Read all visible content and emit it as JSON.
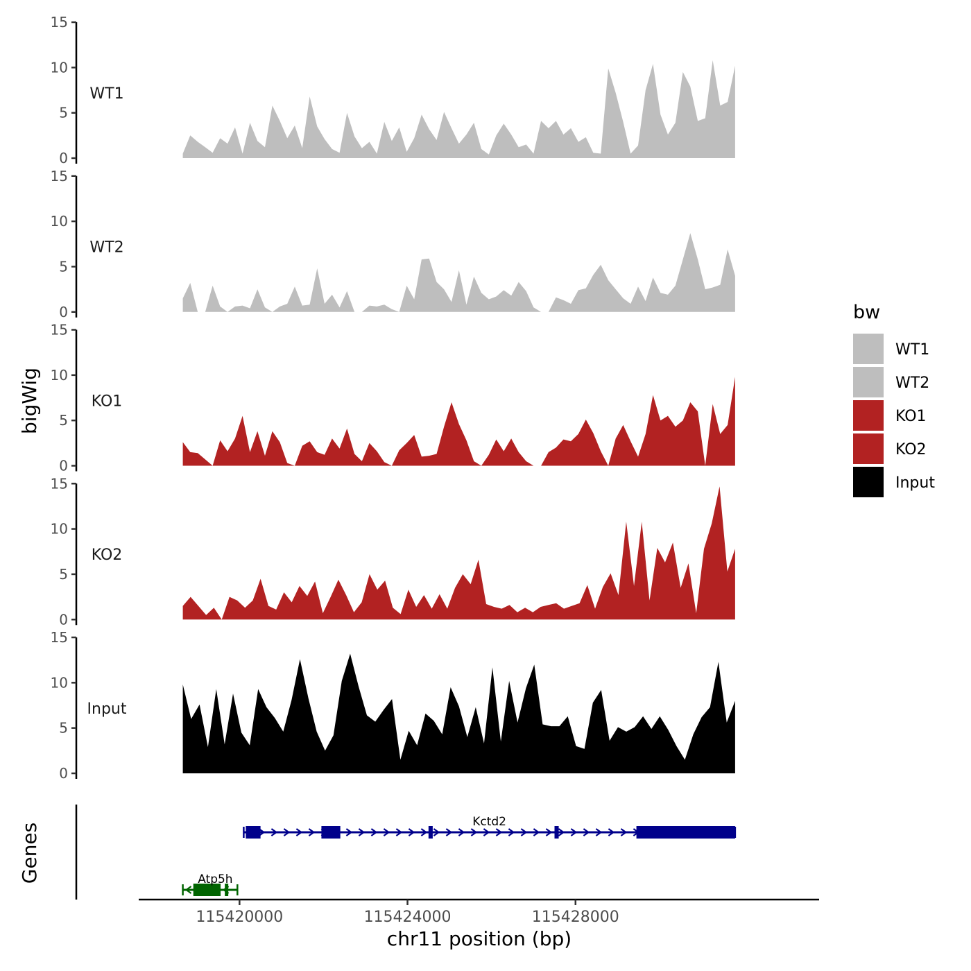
{
  "chart_data": {
    "type": "area",
    "chromosome": "chr11",
    "xlabel": "chr11 position (bp)",
    "ylabel": "bigWig",
    "gene_panel_label": "Genes",
    "xlim": [
      115417600,
      115433800
    ],
    "x_ticks": [
      115420000,
      115424000,
      115428000
    ],
    "x_tick_labels": [
      "115420000",
      "115424000",
      "115428000"
    ],
    "ylim": [
      0,
      15
    ],
    "y_ticks": [
      0,
      5,
      10,
      15
    ],
    "y_tick_labels": [
      "0",
      "5",
      "10",
      "15"
    ],
    "data_range": [
      115418650,
      115431800
    ],
    "series": [
      {
        "name": "WT1",
        "color": "#BEBEBE",
        "values": [
          0.5,
          2.5,
          1.8,
          1.2,
          0.6,
          2.2,
          1.6,
          3.4,
          0.5,
          3.9,
          1.9,
          1.2,
          5.8,
          4.1,
          2.2,
          3.6,
          1.1,
          6.8,
          3.5,
          2.1,
          1.0,
          0.6,
          5.0,
          2.4,
          1.1,
          1.8,
          0.5,
          4.0,
          1.9,
          3.4,
          0.7,
          2.2,
          4.8,
          3.2,
          2.0,
          5.1,
          3.3,
          1.6,
          2.6,
          3.9,
          1.0,
          0.4,
          2.5,
          3.8,
          2.6,
          1.2,
          1.5,
          0.5,
          4.1,
          3.3,
          4.1,
          2.6,
          3.3,
          1.8,
          2.3,
          0.6,
          0.5,
          9.9,
          7.2,
          4.0,
          0.5,
          1.4,
          7.5,
          10.4,
          4.8,
          2.6,
          3.9,
          9.5,
          7.9,
          4.1,
          4.4,
          10.8,
          5.8,
          6.2,
          10.2
        ]
      },
      {
        "name": "WT2",
        "color": "#BEBEBE",
        "values": [
          1.5,
          3.2,
          0,
          0,
          2.9,
          0.6,
          0,
          0.6,
          0.7,
          0.4,
          2.5,
          0.5,
          0,
          0.6,
          0.9,
          2.8,
          0.7,
          0.8,
          4.8,
          0.9,
          1.9,
          0.5,
          2.3,
          0,
          0,
          0.7,
          0.6,
          0.8,
          0.3,
          0,
          2.9,
          1.4,
          5.8,
          5.9,
          3.3,
          2.5,
          1.1,
          4.6,
          0.8,
          3.9,
          2.1,
          1.4,
          1.7,
          2.4,
          1.8,
          3.3,
          2.3,
          0.5,
          0,
          0,
          1.6,
          1.3,
          0.9,
          2.4,
          2.6,
          4.1,
          5.2,
          3.5,
          2.5,
          1.5,
          0.9,
          2.8,
          1.2,
          3.8,
          2.1,
          1.9,
          2.9,
          5.8,
          8.7,
          5.8,
          2.5,
          2.7,
          3.0,
          6.9,
          4.0
        ]
      },
      {
        "name": "KO1",
        "color": "#B22222",
        "values": [
          2.6,
          1.5,
          1.4,
          0.7,
          0,
          2.8,
          1.6,
          3.0,
          5.5,
          1.5,
          3.8,
          1.1,
          3.8,
          2.6,
          0.3,
          0,
          2.2,
          2.7,
          1.5,
          1.2,
          3.0,
          1.9,
          4.1,
          1.3,
          0.5,
          2.5,
          1.6,
          0.4,
          0,
          1.7,
          2.5,
          3.4,
          1.0,
          1.1,
          1.3,
          4.3,
          7.0,
          4.6,
          2.8,
          0.5,
          0,
          1.2,
          2.9,
          1.6,
          3.0,
          1.5,
          0.5,
          0,
          0,
          1.5,
          2.0,
          2.9,
          2.7,
          3.5,
          5.1,
          3.6,
          1.6,
          0,
          3.0,
          4.5,
          2.7,
          1.0,
          3.5,
          7.8,
          5.0,
          5.5,
          4.3,
          5.0,
          7.0,
          6.0,
          0,
          6.8,
          3.5,
          4.5,
          9.8
        ]
      },
      {
        "name": "KO2",
        "color": "#B22222",
        "values": [
          1.5,
          2.5,
          1.5,
          0.5,
          1.3,
          0,
          2.5,
          2.1,
          1.3,
          2.1,
          4.5,
          1.5,
          1.1,
          3.0,
          1.9,
          3.7,
          2.6,
          4.2,
          0.7,
          2.5,
          4.4,
          2.7,
          0.8,
          1.9,
          5.0,
          3.3,
          4.3,
          1.3,
          0.6,
          3.3,
          1.4,
          2.7,
          1.2,
          2.8,
          1.2,
          3.5,
          5.0,
          3.9,
          6.6,
          1.7,
          1.4,
          1.2,
          1.6,
          0.8,
          1.3,
          0.8,
          1.4,
          1.6,
          1.8,
          1.2,
          1.5,
          1.8,
          3.8,
          1.2,
          3.6,
          5.1,
          2.7,
          10.8,
          3.7,
          10.8,
          2.1,
          7.9,
          6.3,
          8.5,
          3.5,
          6.2,
          0.7,
          7.8,
          10.6,
          14.7,
          5.3,
          7.8
        ]
      },
      {
        "name": "Input",
        "color": "#000000",
        "values": [
          9.8,
          6.0,
          7.6,
          2.9,
          9.3,
          3.2,
          8.8,
          4.5,
          3.1,
          9.3,
          7.3,
          6.1,
          4.6,
          8.1,
          12.6,
          8.3,
          4.6,
          2.5,
          4.2,
          10.2,
          13.2,
          9.6,
          6.4,
          5.7,
          7.0,
          8.2,
          1.5,
          4.7,
          3.1,
          6.6,
          5.8,
          4.3,
          9.5,
          7.4,
          4.0,
          7.3,
          3.3,
          11.7,
          3.5,
          10.2,
          5.6,
          9.4,
          12.0,
          5.4,
          5.2,
          5.2,
          6.3,
          3.0,
          2.7,
          7.8,
          9.2,
          3.6,
          5.1,
          4.6,
          5.1,
          6.3,
          4.9,
          6.3,
          4.8,
          3.0,
          1.5,
          4.3,
          6.2,
          7.3,
          12.3,
          5.6,
          8.0
        ]
      }
    ],
    "genes": [
      {
        "name": "Kctd2",
        "color": "#00008B",
        "start": 115420100,
        "end": 115431800,
        "strand": "+",
        "row": 1,
        "exons": [
          [
            115420150,
            115420500
          ],
          [
            115421950,
            115422400
          ],
          [
            115424500,
            115424600
          ],
          [
            115427500,
            115427600
          ],
          [
            115429450,
            115431800
          ]
        ]
      },
      {
        "name": "Atp5h",
        "color": "#006400",
        "start": 115418650,
        "end": 115419950,
        "strand": "-",
        "row": 2,
        "exons": [
          [
            115418900,
            115419550
          ],
          [
            115419650,
            115419720
          ]
        ]
      }
    ]
  },
  "legend": {
    "title": "bw",
    "items": [
      {
        "label": "WT1",
        "color": "#BEBEBE"
      },
      {
        "label": "WT2",
        "color": "#BEBEBE"
      },
      {
        "label": "KO1",
        "color": "#B22222"
      },
      {
        "label": "KO2",
        "color": "#B22222"
      },
      {
        "label": "Input",
        "color": "#000000"
      }
    ]
  }
}
